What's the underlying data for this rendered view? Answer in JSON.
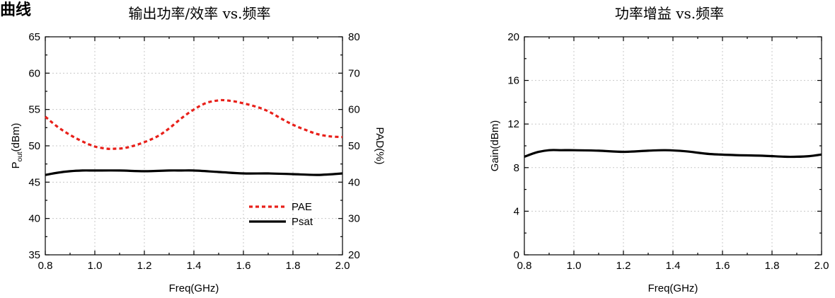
{
  "corner_label": "曲线",
  "chart_data": [
    {
      "type": "line",
      "title": "输出功率/效率 vs.频率",
      "xlabel": "Freq(GHz)",
      "ylabel_main": "P",
      "ylabel_sub": "out",
      "ylabel_tail": "(dBm)",
      "y2label": "PAD(%)",
      "xlim": [
        0.8,
        2.0
      ],
      "ylim": [
        35,
        65
      ],
      "y2lim": [
        20,
        80
      ],
      "x_ticks": [
        "0.8",
        "1.0",
        "1.2",
        "1.4",
        "1.6",
        "1.8",
        "2.0"
      ],
      "y_ticks": [
        "35",
        "40",
        "45",
        "50",
        "55",
        "60",
        "65"
      ],
      "y2_ticks": [
        "20",
        "30",
        "40",
        "50",
        "60",
        "70",
        "80"
      ],
      "grid": true,
      "legend_position": "bottom-right",
      "series": [
        {
          "name": "PAE",
          "axis": "right",
          "color": "#e8201a",
          "style": "dotted",
          "x": [
            0.8,
            0.85,
            0.9,
            0.95,
            1.0,
            1.05,
            1.08,
            1.12,
            1.18,
            1.25,
            1.3,
            1.35,
            1.4,
            1.45,
            1.5,
            1.53,
            1.58,
            1.65,
            1.7,
            1.75,
            1.8,
            1.85,
            1.9,
            1.95,
            2.0
          ],
          "y": [
            58.0,
            55.2,
            53.0,
            51.2,
            49.8,
            49.2,
            49.2,
            49.4,
            50.5,
            52.5,
            54.8,
            57.6,
            60.0,
            61.8,
            62.5,
            62.5,
            62.0,
            60.8,
            59.5,
            57.6,
            55.8,
            54.4,
            53.2,
            52.6,
            52.4
          ]
        },
        {
          "name": "Psat",
          "axis": "left",
          "color": "#000000",
          "style": "solid",
          "x": [
            0.8,
            0.85,
            0.9,
            0.95,
            1.0,
            1.1,
            1.2,
            1.3,
            1.35,
            1.4,
            1.5,
            1.6,
            1.7,
            1.8,
            1.9,
            2.0
          ],
          "y": [
            46.0,
            46.3,
            46.5,
            46.6,
            46.6,
            46.6,
            46.5,
            46.6,
            46.6,
            46.6,
            46.4,
            46.2,
            46.2,
            46.1,
            46.0,
            46.2
          ]
        }
      ]
    },
    {
      "type": "line",
      "title": "功率增益 vs.频率",
      "xlabel": "Freq(GHz)",
      "ylabel": "Gain(dBm)",
      "xlim": [
        0.8,
        2.0
      ],
      "ylim": [
        0,
        20
      ],
      "x_ticks": [
        "0.8",
        "1.0",
        "1.2",
        "1.4",
        "1.6",
        "1.8",
        "2.0"
      ],
      "y_ticks": [
        "0",
        "4",
        "8",
        "12",
        "16",
        "20"
      ],
      "grid": true,
      "series": [
        {
          "color": "#000000",
          "style": "solid",
          "x": [
            0.8,
            0.85,
            0.9,
            0.95,
            1.0,
            1.1,
            1.2,
            1.3,
            1.37,
            1.45,
            1.55,
            1.65,
            1.75,
            1.85,
            1.9,
            1.95,
            2.0
          ],
          "y": [
            9.0,
            9.4,
            9.6,
            9.6,
            9.6,
            9.55,
            9.45,
            9.55,
            9.6,
            9.5,
            9.25,
            9.15,
            9.1,
            9.0,
            9.0,
            9.05,
            9.2
          ]
        }
      ]
    }
  ]
}
